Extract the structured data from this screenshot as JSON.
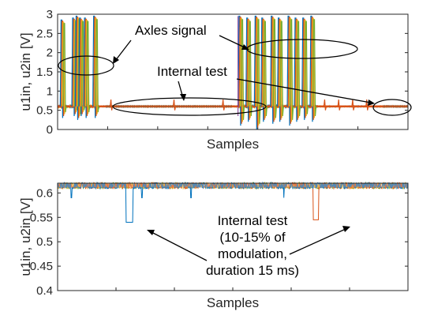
{
  "chart_data": [
    {
      "type": "line",
      "xlabel": "Samples",
      "ylabel": "u1in, u2in [V]",
      "ylim": [
        0,
        3
      ],
      "yticks": [
        0,
        0.5,
        1,
        1.5,
        2,
        2.5,
        3
      ],
      "ytick_labels": [
        "0",
        "0.5",
        "1",
        "1.5",
        "2",
        "2.5",
        "3"
      ],
      "xlim": [
        0,
        1000
      ],
      "baseline": 0.6,
      "series": [
        {
          "color": "#0072bd"
        },
        {
          "color": "#d95319"
        },
        {
          "color": "#edb120"
        },
        {
          "color": "#77ac30"
        }
      ],
      "spikes": [
        {
          "x": 15,
          "peak": 2.85,
          "dip": 0.3
        },
        {
          "x": 48,
          "peak": 2.9,
          "dip": 0.35
        },
        {
          "x": 58,
          "peak": 2.95,
          "dip": 0.25
        },
        {
          "x": 68,
          "peak": 2.9,
          "dip": 0.35
        },
        {
          "x": 82,
          "peak": 2.9,
          "dip": 0.3
        },
        {
          "x": 108,
          "peak": 2.95,
          "dip": 0.3
        },
        {
          "x": 523,
          "peak": 2.95,
          "dip": 0.1
        },
        {
          "x": 545,
          "peak": 2.9,
          "dip": 0.2
        },
        {
          "x": 569,
          "peak": 2.95,
          "dip": 0.0
        },
        {
          "x": 588,
          "peak": 2.9,
          "dip": 0.2
        },
        {
          "x": 615,
          "peak": 2.95,
          "dip": 0.15
        },
        {
          "x": 635,
          "peak": 2.9,
          "dip": 0.2
        },
        {
          "x": 663,
          "peak": 2.95,
          "dip": 0.1
        },
        {
          "x": 683,
          "peak": 2.9,
          "dip": 0.2
        },
        {
          "x": 705,
          "peak": 2.9,
          "dip": 0.25
        },
        {
          "x": 728,
          "peak": 2.95,
          "dip": 0.2
        }
      ],
      "annotations": {
        "axles_signal": "Axles signal",
        "internal_test": "Internal test"
      }
    },
    {
      "type": "line",
      "xlabel": "Samples",
      "ylabel": "u1in, u2in [V]",
      "ylim": [
        0.4,
        0.62
      ],
      "yticks": [
        0.4,
        0.45,
        0.5,
        0.55,
        0.6
      ],
      "ytick_labels": [
        "0.4",
        "0.45",
        "0.5",
        "0.55",
        "0.6"
      ],
      "xlim": [
        0,
        1000
      ],
      "baseline": 0.615,
      "series": [
        {
          "color": "#0072bd",
          "dips": [
            {
              "x0": 195,
              "x1": 215,
              "y": 0.54
            },
            {
              "x0": 38,
              "x1": 40,
              "y": 0.59
            },
            {
              "x0": 240,
              "x1": 242,
              "y": 0.59
            },
            {
              "x0": 380,
              "x1": 382,
              "y": 0.59
            },
            {
              "x0": 645,
              "x1": 647,
              "y": 0.59
            }
          ]
        },
        {
          "color": "#d95319",
          "dips": [
            {
              "x0": 730,
              "x1": 745,
              "y": 0.545
            }
          ]
        },
        {
          "color": "#edb120",
          "dips": []
        },
        {
          "color": "#77ac30",
          "dips": []
        }
      ],
      "annotations": {
        "internal_test_lines": [
          "Internal test",
          "(10-15% of",
          "modulation,",
          "duration 15 ms)"
        ]
      }
    }
  ]
}
